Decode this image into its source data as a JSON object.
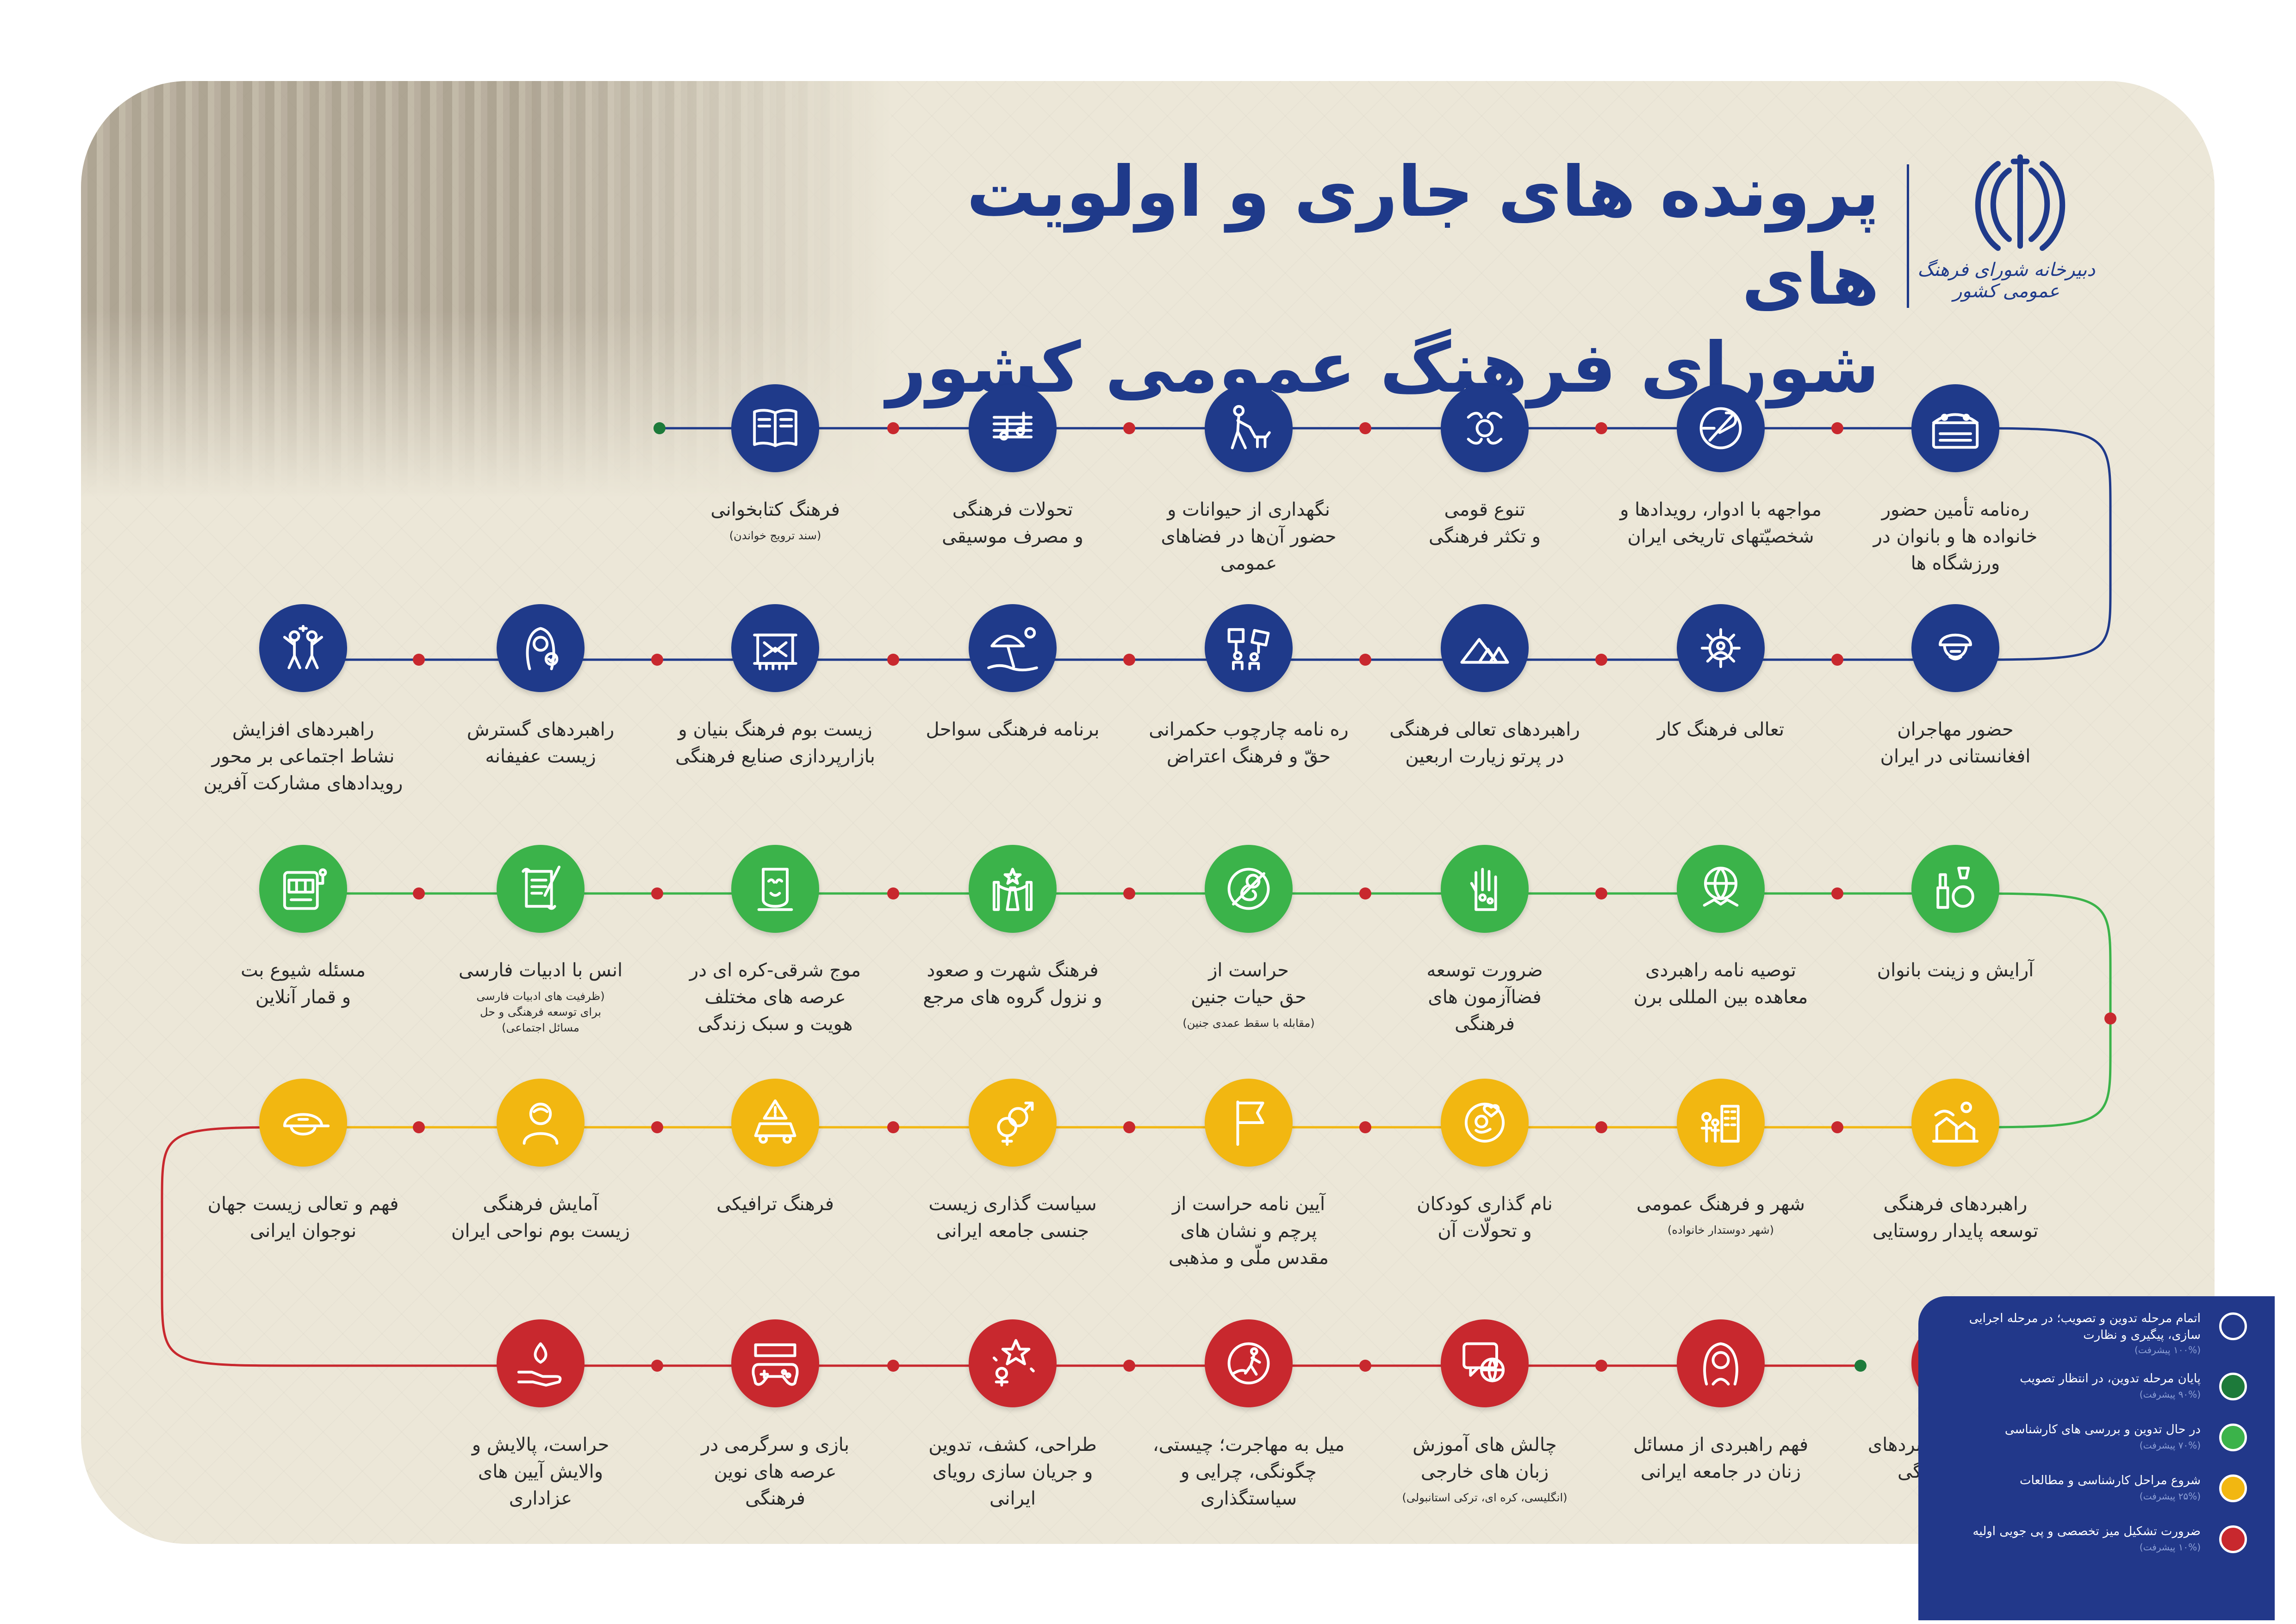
{
  "header": {
    "title_line_1": "پرونده های جاری و اولویت های",
    "title_line_2": "شورای فرهنگ عمومی کشور",
    "emblem_caption": "دبیرخانه شورای فرهنگ عمومی کشور"
  },
  "colors": {
    "navy": "#1f3a8a",
    "dark_green": "#1d7a3a",
    "green": "#3bb34a",
    "yellow": "#f2b711",
    "red": "#c8282e",
    "board": "#ece7d8",
    "legend_bg": "#22388a"
  },
  "rows": [
    {
      "status": "pending",
      "items": [
        {
          "label": "ره‌نامه تأمین حضور\nخانواده ها و بانوان در\nورزشگاه ها",
          "note": "",
          "icon": "stadium-icon"
        },
        {
          "label": "مواجهه با ادوار، رویدادها و\nشخصیّتهای تاریخی ایران",
          "note": "",
          "icon": "history-quill-icon"
        },
        {
          "label": "تنوع قومی\nو تکثر فرهنگی",
          "note": "",
          "icon": "hands-diversity-icon"
        },
        {
          "label": "نگهداری از حیوانات و\nحضور آن‌ها در فضاهای\nعمومی",
          "note": "",
          "icon": "dog-walker-icon"
        },
        {
          "label": "تحولات فرهنگی\nو مصرف موسیقی",
          "note": "",
          "icon": "music-notes-icon"
        },
        {
          "label": "فرهنگ کتابخوانی",
          "note": "(سند ترویج خواندن)",
          "icon": "open-book-icon"
        }
      ]
    },
    {
      "status": "pending",
      "items": [
        {
          "label": "حضور مهاجران\nافغانستانی در ایران",
          "note": "",
          "icon": "migrant-turban-icon"
        },
        {
          "label": "تعالی فرهنگ کار",
          "note": "",
          "icon": "work-gear-icon"
        },
        {
          "label": "راهبردهای تعالی فرهنگی\nدر پرتو زیارت اربعین",
          "note": "",
          "icon": "arbaeen-tents-icon"
        },
        {
          "label": "ره نامه چارچوب حکمرانی\nحقّ و فرهنگ اعتراض",
          "note": "",
          "icon": "protest-signs-icon"
        },
        {
          "label": "برنامه فرهنگی سواحل",
          "note": "",
          "icon": "beach-umbrella-icon"
        },
        {
          "label": "زیست بوم فرهنگ بنیان و\nبازارپردازی صنایع فرهنگی",
          "note": "",
          "icon": "carpet-loom-icon"
        },
        {
          "label": "راهبردهای گسترش\nزیست عفیفانه",
          "note": "",
          "icon": "hijab-woman-icon"
        },
        {
          "label": "راهبردهای افزایش\nنشاط اجتماعی بر محور\nرویدادهای مشارکت آفرین",
          "note": "",
          "icon": "celebration-icon"
        }
      ]
    },
    {
      "status": "in_review",
      "items": [
        {
          "label": "آرایش و زینت بانوان",
          "note": "",
          "icon": "cosmetics-icon"
        },
        {
          "label": "توصیه نامه راهبردی\nمعاهده بین المللی برن",
          "note": "",
          "icon": "globe-handshake-icon"
        },
        {
          "label": "ضرورت توسعه\nفضاآزمون های\nفرهنگی",
          "note": "",
          "icon": "hand-circuit-icon"
        },
        {
          "label": "حراست از\nحق حیات جنین",
          "note": "(مقابله با سقط عمدی جنین)",
          "icon": "fetus-icon"
        },
        {
          "label": "فرهنگ شهرت و صعود\nو نزول گروه های مرجع",
          "note": "",
          "icon": "red-carpet-icon"
        },
        {
          "label": "موج شرقی-کره ای در\nعرصه های مختلف\nهویت و سبک زندگی",
          "note": "",
          "icon": "korean-mask-icon"
        },
        {
          "label": "انس با ادبیات فارسی",
          "note": "(ظرفیت های ادبیات فارسی\nبرای توسعه فرهنگی و حل\nمسائل اجتماعی)",
          "icon": "scroll-quill-icon"
        },
        {
          "label": "مسئله شیوع بت\nو قمار آنلاین",
          "note": "",
          "icon": "slot-machine-icon"
        }
      ]
    },
    {
      "status": "started",
      "items": [
        {
          "label": "راهبردهای فرهنگی\nتوسعه پایدار روستایی",
          "note": "",
          "icon": "village-icon"
        },
        {
          "label": "شهر و فرهنگ عمومی",
          "note": "(شهر دوستدار خانواده)",
          "icon": "city-family-icon"
        },
        {
          "label": "نام گذاری کودکان\nو تحولّات آن",
          "note": "",
          "icon": "baby-name-icon"
        },
        {
          "label": "آیین نامه حراست از\nپرچم و نشان های\nمقدس ملّی و مذهبی",
          "note": "",
          "icon": "flag-icon"
        },
        {
          "label": "سیاست گذاری زیست\nجنسی جامعه ایرانی",
          "note": "",
          "icon": "gender-symbols-icon"
        },
        {
          "label": "فرهنگ ترافیکی",
          "note": "",
          "icon": "car-warning-icon"
        },
        {
          "label": "آمایش فرهنگی\nزیست بوم نواحی ایران",
          "note": "",
          "icon": "person-profile-icon"
        },
        {
          "label": "فهم و تعالی زیست جهان\nنوجوان ایرانی",
          "note": "",
          "icon": "teen-cap-icon"
        }
      ]
    },
    {
      "status": "needed",
      "items": [
        {
          "label": "شاخص ها و راهبردهای\nعدالت فرهنگی",
          "note": "",
          "icon": "justice-scales-icon"
        },
        {
          "label": "فهم راهبردی از مسائل\nزنان در جامعه ایرانی",
          "note": "",
          "icon": "woman-portrait-icon"
        },
        {
          "label": "چالش های آموزش\nزبان های خارجی",
          "note": "(انگلیسی، کره ای، ترکی استانبولی)",
          "icon": "language-chat-icon"
        },
        {
          "label": "میل به مهاجرت؛ چیستی،\nچگونگی، چرایی و\nسیاستگذاری",
          "note": "",
          "icon": "migration-walker-icon"
        },
        {
          "label": "طراحی، کشف، تدوین\nو جریان سازی رویای\nایرانی",
          "note": "",
          "icon": "dream-star-icon"
        },
        {
          "label": "بازی و سرگرمی در\nعرصه های نوین\nفرهنگی",
          "note": "",
          "icon": "gamepad-icon"
        },
        {
          "label": "حراست، پالایش و\nوالایش آیین های\nعزاداری",
          "note": "",
          "icon": "hand-flame-icon"
        }
      ]
    }
  ],
  "legend": [
    {
      "title": "اتمام مرحله تدوین و تصویب؛ در مرحله اجرایی\nسازی، پیگیری و نظارت",
      "percent": "(۱۰۰% پیشرفت)",
      "color": "#22388a"
    },
    {
      "title": "پایان مرحله تدوین، در انتظار تصویب",
      "percent": "(۹۰% پیشرفت)",
      "color": "#1d7a3a"
    },
    {
      "title": "در حال تدوین و بررسی های کارشناسی",
      "percent": "(۷۰% پیشرفت)",
      "color": "#3bb34a"
    },
    {
      "title": "شروع مراحل کارشناسی و مطالعات",
      "percent": "(۲۵% پیشرفت)",
      "color": "#f2b711"
    },
    {
      "title": "ضرورت تشکیل میز تخصصی و پی جویی اولیه",
      "percent": "(۱۰% پیشرفت)",
      "color": "#c8282e"
    }
  ]
}
